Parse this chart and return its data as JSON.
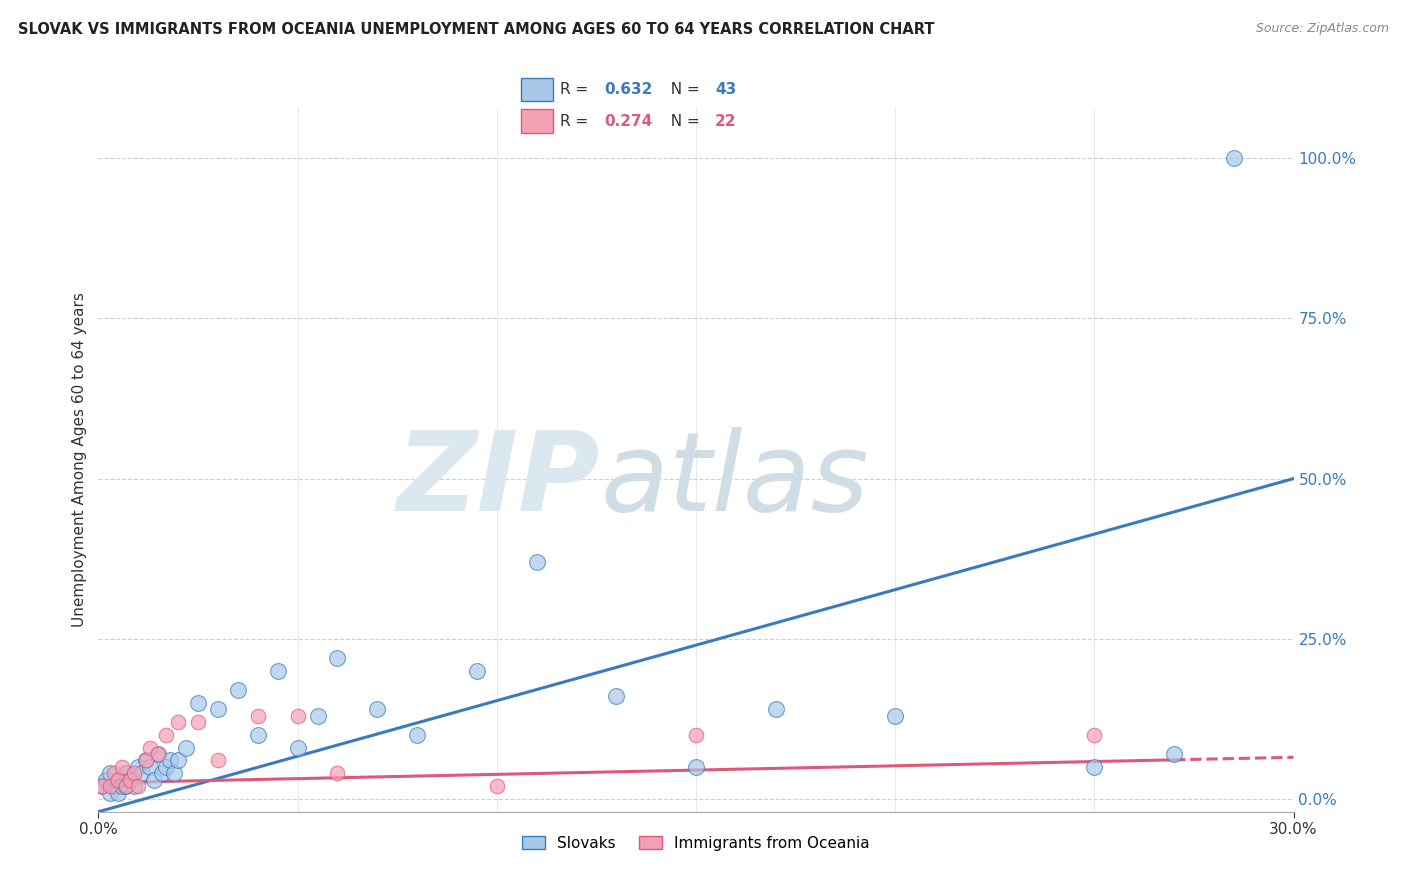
{
  "title": "SLOVAK VS IMMIGRANTS FROM OCEANIA UNEMPLOYMENT AMONG AGES 60 TO 64 YEARS CORRELATION CHART",
  "source": "Source: ZipAtlas.com",
  "ylabel": "Unemployment Among Ages 60 to 64 years",
  "ytick_values": [
    0.0,
    0.25,
    0.5,
    0.75,
    1.0
  ],
  "xlim": [
    0.0,
    0.3
  ],
  "ylim": [
    -0.02,
    1.08
  ],
  "R_slovak": 0.632,
  "N_slovak": 43,
  "R_oceania": 0.274,
  "N_oceania": 22,
  "color_slovak": "#a8c8e8",
  "color_oceania": "#f4a0b5",
  "color_line_slovak": "#3a7abf",
  "color_line_oceania": "#e05878",
  "background_color": "#ffffff",
  "slovak_x": [
    0.001,
    0.002,
    0.003,
    0.003,
    0.004,
    0.005,
    0.005,
    0.006,
    0.007,
    0.007,
    0.008,
    0.009,
    0.01,
    0.011,
    0.012,
    0.013,
    0.014,
    0.015,
    0.016,
    0.017,
    0.018,
    0.019,
    0.02,
    0.022,
    0.025,
    0.03,
    0.035,
    0.04,
    0.045,
    0.05,
    0.055,
    0.06,
    0.07,
    0.08,
    0.095,
    0.11,
    0.13,
    0.15,
    0.17,
    0.2,
    0.25,
    0.27,
    0.285
  ],
  "slovak_y": [
    0.02,
    0.03,
    0.01,
    0.04,
    0.02,
    0.03,
    0.01,
    0.02,
    0.04,
    0.02,
    0.03,
    0.02,
    0.05,
    0.04,
    0.06,
    0.05,
    0.03,
    0.07,
    0.04,
    0.05,
    0.06,
    0.04,
    0.06,
    0.08,
    0.15,
    0.14,
    0.17,
    0.1,
    0.2,
    0.08,
    0.13,
    0.22,
    0.14,
    0.1,
    0.2,
    0.37,
    0.16,
    0.05,
    0.14,
    0.13,
    0.05,
    0.07,
    1.0
  ],
  "oceania_x": [
    0.001,
    0.003,
    0.004,
    0.005,
    0.006,
    0.007,
    0.008,
    0.009,
    0.01,
    0.012,
    0.013,
    0.015,
    0.017,
    0.02,
    0.025,
    0.03,
    0.04,
    0.05,
    0.06,
    0.1,
    0.15,
    0.25
  ],
  "oceania_y": [
    0.02,
    0.02,
    0.04,
    0.03,
    0.05,
    0.02,
    0.03,
    0.04,
    0.02,
    0.06,
    0.08,
    0.07,
    0.1,
    0.12,
    0.12,
    0.06,
    0.13,
    0.13,
    0.04,
    0.02,
    0.1,
    0.1
  ],
  "line_slovak_x0": 0.0,
  "line_slovak_y0": -0.02,
  "line_slovak_x1": 0.3,
  "line_slovak_y1": 0.5,
  "line_oceania_x0": 0.0,
  "line_oceania_y0": 0.025,
  "line_oceania_x1_solid": 0.27,
  "line_oceania_x1": 0.3,
  "line_oceania_y1": 0.065
}
